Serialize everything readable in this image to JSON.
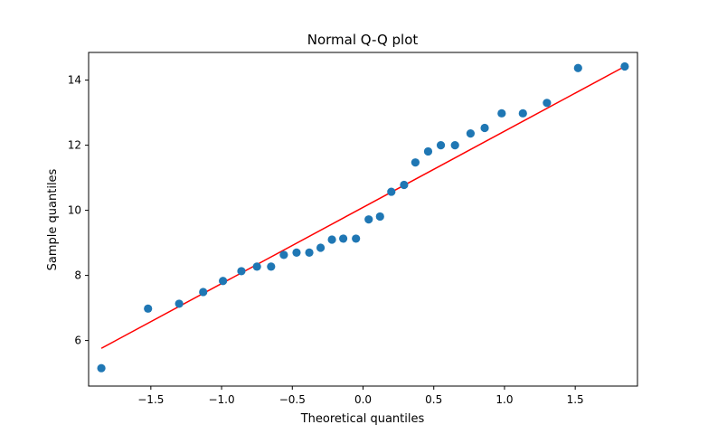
{
  "chart_data": {
    "type": "scatter",
    "title": "Normal Q-Q plot",
    "xlabel": "Theoretical quantiles",
    "ylabel": "Sample quantiles",
    "xlim": [
      -1.94,
      1.94
    ],
    "ylim": [
      4.6,
      14.85
    ],
    "xticks": [
      -1.5,
      -1.0,
      -0.5,
      0.0,
      0.5,
      1.0,
      1.5
    ],
    "xtick_labels": [
      "−1.5",
      "−1.0",
      "−0.5",
      "0.0",
      "0.5",
      "1.0",
      "1.5"
    ],
    "yticks": [
      6,
      8,
      10,
      12,
      14
    ],
    "ytick_labels": [
      "6",
      "8",
      "10",
      "12",
      "14"
    ],
    "grid": false,
    "series": [
      {
        "kind": "points",
        "color": "#1f77b4",
        "points": [
          [
            -1.85,
            5.15
          ],
          [
            -1.52,
            6.98
          ],
          [
            -1.3,
            7.13
          ],
          [
            -1.13,
            7.49
          ],
          [
            -0.99,
            7.83
          ],
          [
            -0.86,
            8.13
          ],
          [
            -0.75,
            8.27
          ],
          [
            -0.65,
            8.27
          ],
          [
            -0.56,
            8.63
          ],
          [
            -0.47,
            8.7
          ],
          [
            -0.38,
            8.7
          ],
          [
            -0.3,
            8.85
          ],
          [
            -0.22,
            9.1
          ],
          [
            -0.14,
            9.13
          ],
          [
            -0.05,
            9.13
          ],
          [
            0.04,
            9.72
          ],
          [
            0.12,
            9.81
          ],
          [
            0.2,
            10.57
          ],
          [
            0.29,
            10.78
          ],
          [
            0.37,
            11.47
          ],
          [
            0.46,
            11.81
          ],
          [
            0.55,
            12.0
          ],
          [
            0.65,
            12.0
          ],
          [
            0.76,
            12.36
          ],
          [
            0.86,
            12.53
          ],
          [
            0.98,
            12.98
          ],
          [
            1.13,
            12.98
          ],
          [
            1.3,
            13.3
          ],
          [
            1.52,
            14.37
          ],
          [
            1.85,
            14.42
          ]
        ]
      },
      {
        "kind": "reference-line",
        "color": "#ff0000",
        "points": [
          [
            -1.85,
            5.76
          ],
          [
            1.85,
            14.42
          ]
        ]
      }
    ]
  }
}
